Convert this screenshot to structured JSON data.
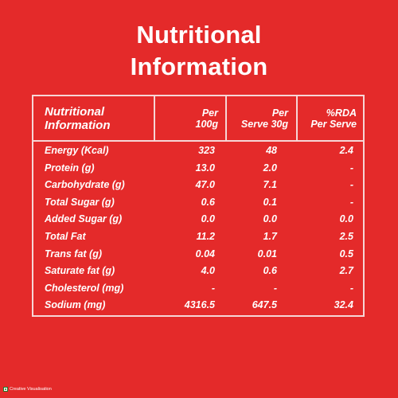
{
  "title": {
    "line1": "Nutritional",
    "line2": "Information"
  },
  "table": {
    "headers": {
      "nutri_line1": "Nutritional",
      "nutri_line2": "Information",
      "col1_line1": "Per",
      "col1_line2": "100g",
      "col2_line1": "Per",
      "col2_line2": "Serve 30g",
      "col3_line1": "%RDA",
      "col3_line2": "Per Serve"
    },
    "rows": [
      {
        "name": "Energy (Kcal)",
        "per100": "323",
        "perServe": "48",
        "rda": "2.4"
      },
      {
        "name": "Protein (g)",
        "per100": "13.0",
        "perServe": "2.0",
        "rda": "-"
      },
      {
        "name": "Carbohydrate (g)",
        "per100": "47.0",
        "perServe": "7.1",
        "rda": "-"
      },
      {
        "name": "Total Sugar (g)",
        "per100": "0.6",
        "perServe": "0.1",
        "rda": "-"
      },
      {
        "name": "Added Sugar (g)",
        "per100": "0.0",
        "perServe": "0.0",
        "rda": "0.0"
      },
      {
        "name": "Total Fat",
        "per100": "11.2",
        "perServe": "1.7",
        "rda": "2.5"
      },
      {
        "name": "Trans fat (g)",
        "per100": "0.04",
        "perServe": "0.01",
        "rda": "0.5"
      },
      {
        "name": "Saturate fat (g)",
        "per100": "4.0",
        "perServe": "0.6",
        "rda": "2.7"
      },
      {
        "name": "Cholesterol (mg)",
        "per100": "-",
        "perServe": "-",
        "rda": "-"
      },
      {
        "name": "Sodium (mg)",
        "per100": "4316.5",
        "perServe": "647.5",
        "rda": "32.4"
      }
    ]
  },
  "footer": {
    "note": "Creative Visualisation",
    "icon": "veg-mark-icon"
  },
  "colors": {
    "background": "#e42a2a",
    "text": "#ffffff",
    "border": "#f6d6d6",
    "veg_mark": "#1b7d2a"
  }
}
